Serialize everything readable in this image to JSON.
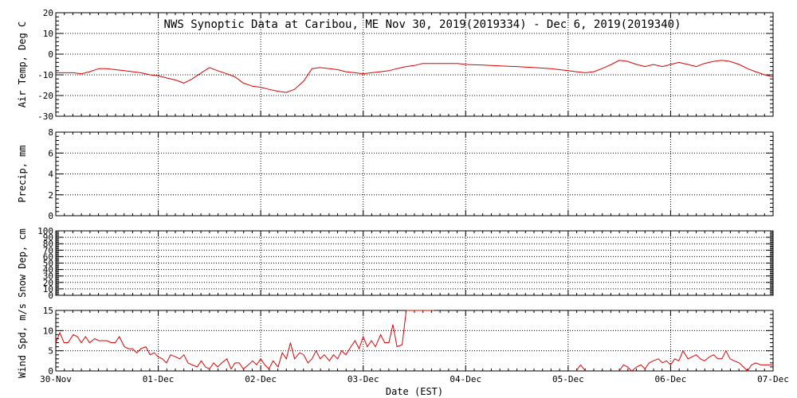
{
  "title": "NWS Synoptic Data at Caribou, ME   Nov 30, 2019(2019334) - Dec  6, 2019(2019340)",
  "xlabel": "Date (EST)",
  "colors": {
    "line": "#dd0000",
    "axis": "#000000",
    "grid": "#000000"
  },
  "chart_data": [
    {
      "type": "line",
      "name": "air-temp",
      "ylabel": "Air Temp, Deg C",
      "ylim": [
        -30,
        20
      ],
      "yticks": [
        -30,
        -20,
        -10,
        0,
        10,
        20
      ],
      "ytick_labels": [
        "-30",
        "-20",
        "-10",
        "0",
        "10",
        "20"
      ],
      "grid": true,
      "x": [
        0.0,
        0.08,
        0.17,
        0.25,
        0.33,
        0.42,
        0.5,
        0.58,
        0.67,
        0.75,
        0.83,
        0.92,
        1.0,
        1.08,
        1.17,
        1.25,
        1.33,
        1.42,
        1.5,
        1.58,
        1.67,
        1.75,
        1.83,
        1.92,
        2.0,
        2.08,
        2.17,
        2.25,
        2.33,
        2.42,
        2.5,
        2.58,
        2.67,
        2.75,
        2.83,
        2.92,
        3.0,
        3.08,
        3.17,
        3.25,
        3.33,
        3.42,
        3.5,
        3.58,
        3.67,
        3.75,
        3.83,
        3.92,
        4.0,
        4.17,
        4.33,
        4.5,
        4.67,
        4.83,
        5.0,
        5.08,
        5.17,
        5.25,
        5.33,
        5.42,
        5.5,
        5.58,
        5.67,
        5.75,
        5.83,
        5.92,
        6.0,
        6.08,
        6.17,
        6.25,
        6.33,
        6.42,
        6.5,
        6.58,
        6.67,
        6.75,
        6.83,
        6.92,
        7.0
      ],
      "values": [
        -9,
        -9,
        -9,
        -9.5,
        -8.5,
        -7,
        -7,
        -7.5,
        -8,
        -8.5,
        -9,
        -10,
        -10.5,
        -11.5,
        -12.5,
        -14,
        -12,
        -9,
        -6.5,
        -8,
        -9.5,
        -11,
        -14,
        -15.5,
        -16,
        -17,
        -18,
        -18.5,
        -17,
        -13,
        -7,
        -6.5,
        -7,
        -7.5,
        -8.5,
        -9,
        -9.5,
        -9,
        -8.5,
        -8,
        -7,
        -6,
        -5.5,
        -4.5,
        -4.5,
        -4.5,
        -4.5,
        -4.5,
        -5,
        -5.3,
        -5.7,
        -6,
        -6.5,
        -7,
        -8,
        -8.5,
        -9,
        -8.5,
        -7,
        -5,
        -3,
        -3.5,
        -5,
        -6,
        -5,
        -6,
        -5,
        -4,
        -5,
        -6,
        -4.5,
        -3.5,
        -3,
        -3.5,
        -5,
        -7,
        -8.5,
        -10,
        -11
      ]
    },
    {
      "type": "line",
      "name": "precip",
      "ylabel": "Precip, mm",
      "ylim": [
        0,
        8
      ],
      "yticks": [
        0,
        2,
        4,
        6,
        8
      ],
      "ytick_labels": [
        "0",
        "2",
        "4",
        "6",
        "8"
      ],
      "grid": true,
      "x": [],
      "values": []
    },
    {
      "type": "line",
      "name": "snow-depth",
      "ylabel": "Snow Dep, cm",
      "ylim": [
        0,
        100
      ],
      "yticks": [
        0,
        10,
        20,
        30,
        40,
        50,
        60,
        70,
        80,
        90,
        100
      ],
      "ytick_labels": [
        "0",
        "10",
        "20",
        "30",
        "40",
        "50",
        "60",
        "70",
        "80",
        "90",
        "100"
      ],
      "grid": true,
      "x": [],
      "values": []
    },
    {
      "type": "line",
      "name": "wind-speed",
      "ylabel": "Wind Spd, m/s",
      "ylim": [
        0,
        15
      ],
      "yticks": [
        0,
        5,
        10,
        15
      ],
      "ytick_labels": [
        "0",
        "5",
        "10",
        "15"
      ],
      "grid": true,
      "segments": [
        {
          "x": [
            0.0,
            0.04,
            0.08,
            0.12,
            0.17,
            0.21,
            0.25,
            0.29,
            0.33,
            0.38,
            0.42,
            0.46,
            0.5,
            0.54,
            0.58,
            0.62,
            0.67,
            0.71,
            0.75,
            0.79,
            0.83,
            0.88,
            0.92,
            0.96,
            1.0,
            1.04,
            1.08,
            1.12,
            1.17,
            1.21,
            1.25,
            1.29,
            1.33,
            1.38,
            1.42,
            1.46,
            1.5,
            1.54,
            1.58,
            1.62,
            1.67,
            1.71,
            1.75,
            1.79,
            1.83,
            1.88,
            1.92,
            1.96,
            2.0,
            2.04,
            2.08,
            2.12,
            2.17,
            2.21,
            2.25,
            2.29,
            2.33,
            2.38,
            2.42,
            2.46,
            2.5,
            2.54,
            2.58,
            2.62,
            2.67,
            2.71,
            2.75,
            2.79,
            2.83,
            2.88,
            2.92,
            2.96,
            3.0,
            3.04,
            3.08,
            3.12,
            3.17,
            3.21,
            3.25,
            3.29,
            3.33,
            3.38,
            3.42,
            3.46,
            3.5,
            3.54,
            3.58,
            3.62,
            3.67,
            3.69
          ],
          "values": [
            7,
            9.5,
            7,
            7,
            9,
            8.5,
            7,
            8.5,
            7,
            8,
            7.5,
            7.5,
            7.5,
            7,
            7,
            8.5,
            6,
            5.5,
            5.5,
            4.5,
            5.5,
            6,
            4,
            4.5,
            3.5,
            3,
            2,
            4,
            3.5,
            3,
            4,
            2,
            1.5,
            1,
            2.5,
            1,
            0.5,
            2,
            1,
            2,
            3,
            0.5,
            2,
            2,
            0.5,
            1.5,
            2.5,
            1.5,
            3,
            1.5,
            0.5,
            2.5,
            1,
            4.5,
            3,
            7,
            3,
            4.5,
            4,
            2,
            3,
            5,
            3,
            4,
            2.5,
            4,
            3,
            5,
            4,
            6,
            7.5,
            5.5,
            8.5,
            6,
            7.5,
            6,
            9,
            7,
            7,
            11.5,
            6,
            6.5,
            15,
            15,
            15,
            15,
            15,
            15,
            15,
            15
          ]
        },
        {
          "x": [
            5.08,
            5.12,
            5.17
          ],
          "values": [
            0,
            1.5,
            0
          ]
        },
        {
          "x": [
            5.5,
            5.54,
            5.58,
            5.62,
            5.67,
            5.71,
            5.75,
            5.79,
            5.83,
            5.88,
            5.92,
            5.96,
            6.0,
            6.04,
            6.08,
            6.12,
            6.17,
            6.21,
            6.25,
            6.29,
            6.33,
            6.38,
            6.42,
            6.46,
            6.5,
            6.54,
            6.58,
            6.62,
            6.67,
            6.71,
            6.75,
            6.79,
            6.83,
            6.88,
            6.92,
            6.96,
            7.0
          ],
          "values": [
            0,
            1.5,
            1,
            0,
            1,
            1.5,
            0.5,
            2,
            2.5,
            3,
            2,
            2.5,
            1.5,
            3,
            2.5,
            5,
            3,
            3.5,
            4,
            3,
            2.5,
            3.5,
            4,
            3,
            3,
            5,
            3,
            2.5,
            2,
            1,
            0,
            1.5,
            2,
            1.5,
            1.5,
            1.5,
            1.5
          ]
        }
      ]
    }
  ],
  "x_axis": {
    "xlim": [
      0,
      7
    ],
    "ticks": [
      0,
      1,
      2,
      3,
      4,
      5,
      6,
      7
    ],
    "tick_labels": [
      "30-Nov",
      "01-Dec",
      "02-Dec",
      "03-Dec",
      "04-Dec",
      "05-Dec",
      "06-Dec",
      "07-Dec"
    ]
  }
}
